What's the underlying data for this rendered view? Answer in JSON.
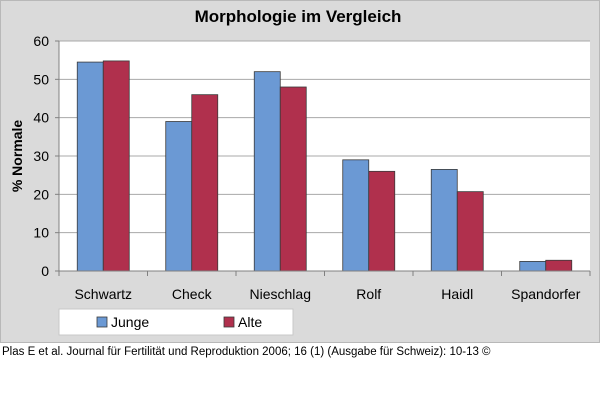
{
  "chart_data": {
    "type": "bar",
    "title": "Morphologie im Vergleich",
    "xlabel": "",
    "ylabel": "% Normale",
    "ylim": [
      0,
      60
    ],
    "yticks": [
      0,
      10,
      20,
      30,
      40,
      50,
      60
    ],
    "categories": [
      "Schwartz",
      "Check",
      "Nieschlag",
      "Rolf",
      "Haidl",
      "Spandorfer"
    ],
    "series": [
      {
        "name": "Junge",
        "color": "#6b99d4",
        "values": [
          54.5,
          39,
          52,
          29,
          26.5,
          2.5
        ]
      },
      {
        "name": "Alte",
        "color": "#b0304d",
        "values": [
          54.8,
          46,
          48,
          26,
          20.7,
          2.8
        ]
      }
    ],
    "grid": true,
    "legend": "bottom-left"
  },
  "caption": "Plas E et al. Journal für Fertilität und Reproduktion 2006; 16 (1) (Ausgabe für Schweiz): 10-13 ©"
}
